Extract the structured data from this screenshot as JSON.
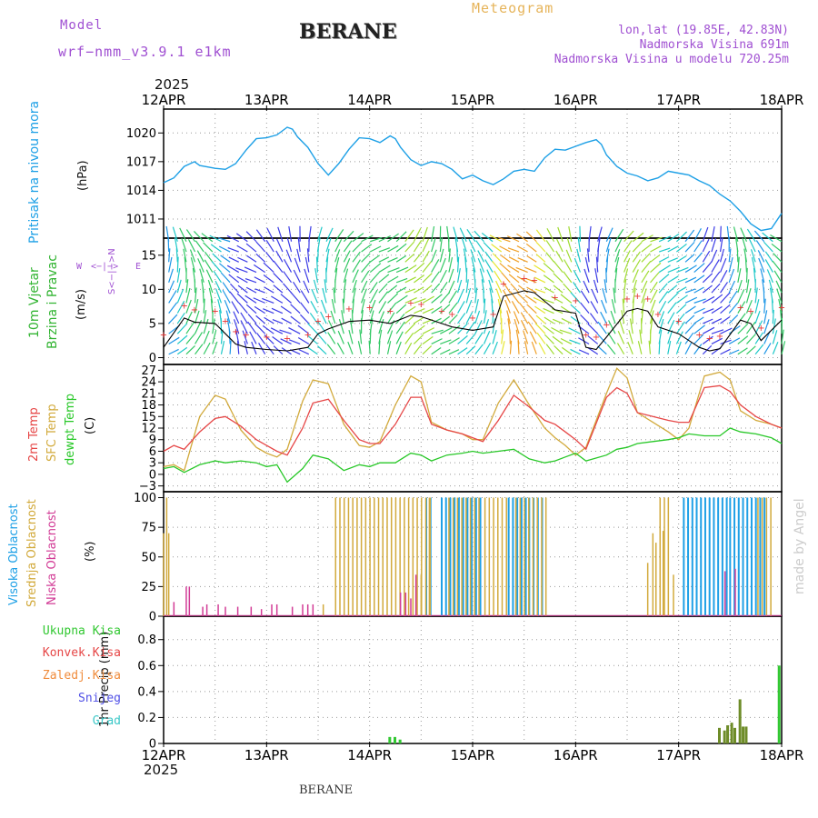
{
  "header": {
    "model_label": "Model",
    "model_name": "wrf−nmm_v3.9.1 e1km",
    "station": "BERANE",
    "product": "Meteogram",
    "lonlat": "lon,lat (19.85E, 42.83N)",
    "elevation": "Nadmorska Visina 691m",
    "model_elevation": "Nadmorska Visina u modelu 720.25m",
    "year_top": "2025",
    "year_bottom": "2025",
    "footer_station": "BERANE",
    "credit": "made by Angel"
  },
  "colors": {
    "pressure": "#1ea0e6",
    "temp2m": "#e64646",
    "sfc": "#d2aa3c",
    "dewpt": "#28c828",
    "wind_title": "#32b432",
    "wind_rose": "#a050d2",
    "high_cloud": "#1ea0e6",
    "mid_cloud": "#d2aa3c",
    "low_cloud": "#d23c96",
    "total_rain": "#32c832",
    "conv_rain": "#e64646",
    "frz_rain": "#f08c3c",
    "snow": "#5050e6",
    "graupel": "#3cc8c8",
    "precip_bar": "#6e8c28"
  },
  "chart_data": [
    {
      "type": "line",
      "panel": "pressure",
      "title_left": "Pritisak na nivou mora",
      "ylabel": "(hPa)",
      "ylim": [
        1009,
        1022.5
      ],
      "yticks": [
        1011,
        1014,
        1017,
        1020
      ],
      "x_days": [
        "12APR",
        "13APR",
        "14APR",
        "15APR",
        "16APR",
        "17APR",
        "18APR"
      ],
      "x": [
        0,
        0.1,
        0.2,
        0.3,
        0.35,
        0.5,
        0.6,
        0.7,
        0.8,
        0.9,
        1.0,
        1.1,
        1.2,
        1.25,
        1.3,
        1.4,
        1.5,
        1.6,
        1.7,
        1.8,
        1.9,
        2.0,
        2.1,
        2.2,
        2.25,
        2.3,
        2.4,
        2.5,
        2.6,
        2.7,
        2.8,
        2.9,
        3.0,
        3.1,
        3.2,
        3.3,
        3.4,
        3.5,
        3.6,
        3.7,
        3.8,
        3.9,
        4.0,
        4.1,
        4.2,
        4.25,
        4.3,
        4.4,
        4.5,
        4.6,
        4.7,
        4.8,
        4.9,
        5.0,
        5.1,
        5.2,
        5.3,
        5.4,
        5.5,
        5.6,
        5.7,
        5.8,
        5.9,
        6.0
      ],
      "values": [
        1014.8,
        1015.3,
        1016.5,
        1017.0,
        1016.6,
        1016.3,
        1016.2,
        1016.8,
        1018.2,
        1019.4,
        1019.5,
        1019.8,
        1020.6,
        1020.4,
        1019.6,
        1018.5,
        1016.8,
        1015.6,
        1016.8,
        1018.3,
        1019.5,
        1019.4,
        1019.0,
        1019.7,
        1019.4,
        1018.5,
        1017.2,
        1016.6,
        1017.0,
        1016.8,
        1016.2,
        1015.2,
        1015.6,
        1015.0,
        1014.6,
        1015.2,
        1016.0,
        1016.2,
        1016.0,
        1017.4,
        1018.3,
        1018.2,
        1018.6,
        1019.0,
        1019.3,
        1018.8,
        1017.7,
        1016.5,
        1015.8,
        1015.5,
        1015.0,
        1015.3,
        1016.0,
        1015.8,
        1015.6,
        1015.0,
        1014.5,
        1013.6,
        1012.9,
        1011.8,
        1010.5,
        1009.8,
        1010.0,
        1011.6
      ]
    },
    {
      "type": "line",
      "panel": "wind",
      "title_left": "10m Vjetar",
      "title_left2": "Brzina i Pravac",
      "ylabel": "(m/s)",
      "rose": {
        "n": "N",
        "s": "S",
        "w": "W",
        "e": "E",
        "mid": "<−|−>"
      },
      "ylim": [
        -1,
        17.5
      ],
      "yticks": [
        0,
        5,
        10,
        15
      ],
      "x": [
        0,
        0.2,
        0.3,
        0.5,
        0.6,
        0.7,
        0.8,
        1.0,
        1.2,
        1.4,
        1.5,
        1.6,
        1.8,
        2.0,
        2.2,
        2.4,
        2.5,
        2.7,
        2.8,
        3.0,
        3.2,
        3.3,
        3.5,
        3.6,
        3.8,
        4.0,
        4.1,
        4.2,
        4.3,
        4.5,
        4.6,
        4.7,
        4.8,
        5.0,
        5.2,
        5.3,
        5.4,
        5.6,
        5.7,
        5.8,
        6.0
      ],
      "values": [
        1.5,
        5.8,
        5.2,
        5.0,
        3.5,
        2.0,
        1.5,
        1.2,
        1.0,
        1.5,
        3.5,
        4.2,
        5.3,
        5.5,
        5.0,
        6.2,
        6.0,
        5.0,
        4.5,
        4.0,
        4.5,
        9.0,
        9.8,
        9.5,
        7.0,
        6.5,
        1.5,
        1.2,
        3.0,
        6.8,
        7.2,
        6.8,
        4.5,
        3.5,
        1.5,
        1.0,
        1.3,
        5.5,
        5.0,
        2.5,
        5.5
      ]
    },
    {
      "type": "line",
      "panel": "temperature",
      "title_left": "2m Temp",
      "title_left2": "SFC Temp",
      "title_left3": "dewpt Temp",
      "ylabel": "(C)",
      "ylim": [
        -4.5,
        28.5
      ],
      "yticks": [
        -3,
        0,
        3,
        6,
        9,
        12,
        15,
        18,
        21,
        24,
        27
      ],
      "x": [
        0,
        0.1,
        0.2,
        0.35,
        0.5,
        0.6,
        0.75,
        0.9,
        1.0,
        1.1,
        1.2,
        1.35,
        1.45,
        1.6,
        1.75,
        1.9,
        2.0,
        2.1,
        2.25,
        2.4,
        2.5,
        2.6,
        2.75,
        2.9,
        3.0,
        3.1,
        3.25,
        3.4,
        3.55,
        3.7,
        3.8,
        3.9,
        4.0,
        4.1,
        4.3,
        4.4,
        4.5,
        4.6,
        4.75,
        4.9,
        5.0,
        5.1,
        5.25,
        5.4,
        5.5,
        5.6,
        5.75,
        5.9,
        6.0
      ],
      "series": [
        {
          "name": "2m Temp",
          "values": [
            6.0,
            7.5,
            6.5,
            11.0,
            14.5,
            15.0,
            12.5,
            9.0,
            7.5,
            6.0,
            5.0,
            12.0,
            18.5,
            19.5,
            14.0,
            9.0,
            8.0,
            8.0,
            13.0,
            20.0,
            20.0,
            13.0,
            11.5,
            10.5,
            9.5,
            8.5,
            14.0,
            20.5,
            17.5,
            14.0,
            13.0,
            11.0,
            9.0,
            6.5,
            20.0,
            22.5,
            21.0,
            16.0,
            15.0,
            14.0,
            13.5,
            13.5,
            22.5,
            23.0,
            21.5,
            18.0,
            15.0,
            13.0,
            12.0
          ]
        },
        {
          "name": "SFC Temp",
          "values": [
            2.0,
            2.5,
            1.0,
            15.0,
            20.5,
            19.5,
            11.5,
            7.0,
            5.5,
            4.5,
            6.5,
            19.0,
            24.5,
            23.5,
            13.0,
            7.5,
            7.0,
            8.5,
            18.0,
            25.5,
            24.0,
            13.5,
            11.5,
            10.5,
            9.0,
            9.0,
            18.5,
            24.5,
            18.0,
            12.0,
            9.5,
            7.5,
            5.0,
            7.0,
            21.0,
            27.5,
            25.0,
            16.0,
            13.5,
            11.0,
            9.0,
            12.0,
            25.5,
            26.5,
            24.5,
            16.5,
            14.0,
            13.0,
            12.0
          ]
        },
        {
          "name": "dewpt Temp",
          "values": [
            1.5,
            2.0,
            0.5,
            2.5,
            3.5,
            3.0,
            3.5,
            3.0,
            2.0,
            2.5,
            -2.0,
            1.5,
            5.0,
            4.0,
            1.0,
            2.5,
            2.0,
            3.0,
            3.0,
            5.5,
            5.0,
            3.5,
            5.0,
            5.5,
            6.0,
            5.5,
            6.0,
            6.5,
            4.0,
            3.0,
            3.5,
            4.5,
            5.5,
            3.5,
            5.0,
            6.5,
            7.0,
            8.0,
            8.5,
            9.0,
            9.5,
            10.5,
            10.0,
            10.0,
            12.0,
            11.0,
            10.5,
            9.5,
            8.0
          ]
        }
      ]
    },
    {
      "type": "bar",
      "panel": "cloud",
      "title_left": "Visoka Oblacnost",
      "title_left2": "Srednja Oblacnost",
      "title_left3": "Niska Oblacnost",
      "ylabel": "(%)",
      "ylim": [
        0,
        105
      ],
      "yticks": [
        0,
        25,
        50,
        75,
        100
      ],
      "high_ranges": [
        [
          2.55,
          2.62
        ],
        [
          2.7,
          3.1
        ],
        [
          3.35,
          3.55
        ],
        [
          3.55,
          3.7
        ],
        [
          5.05,
          5.5
        ],
        [
          5.5,
          5.85
        ]
      ],
      "mid_ranges": [
        [
          1.65,
          2.6
        ],
        [
          2.75,
          3.1
        ],
        [
          3.1,
          3.35
        ],
        [
          3.4,
          3.75
        ],
        [
          4.8,
          4.9
        ],
        [
          5.75,
          5.9
        ]
      ],
      "low_bars": [
        [
          0.1,
          12
        ],
        [
          0.22,
          25
        ],
        [
          0.25,
          25
        ],
        [
          0.38,
          8
        ],
        [
          0.42,
          10
        ],
        [
          0.53,
          10
        ],
        [
          0.6,
          8
        ],
        [
          0.72,
          8
        ],
        [
          0.85,
          8
        ],
        [
          0.95,
          6
        ],
        [
          1.05,
          10
        ],
        [
          1.1,
          10
        ],
        [
          1.25,
          8
        ],
        [
          1.35,
          10
        ],
        [
          1.4,
          10
        ],
        [
          1.45,
          10
        ],
        [
          2.3,
          20
        ],
        [
          2.35,
          20
        ],
        [
          2.4,
          15
        ],
        [
          2.45,
          35
        ],
        [
          5.45,
          38
        ],
        [
          5.55,
          40
        ]
      ],
      "mid_extra": [
        [
          0.0,
          70
        ],
        [
          0.03,
          100
        ],
        [
          0.05,
          70
        ],
        [
          1.55,
          10
        ],
        [
          2.45,
          25
        ],
        [
          2.5,
          35
        ],
        [
          2.58,
          100
        ],
        [
          3.9,
          0
        ],
        [
          4.7,
          45
        ],
        [
          4.75,
          70
        ],
        [
          4.78,
          62
        ],
        [
          4.82,
          100
        ],
        [
          4.85,
          72
        ],
        [
          4.9,
          100
        ],
        [
          4.95,
          35
        ]
      ]
    },
    {
      "type": "bar",
      "panel": "precip",
      "title_left": "Ukupna Kisa",
      "title_left2": "Konvek.Kisa",
      "title_left3": "Zaledj.Kisa",
      "title_left4": "Snijeg",
      "title_left5": "Grad",
      "ylabel": "1hr Precip (mm)",
      "ylim": [
        0,
        0.98
      ],
      "yticks": [
        0,
        0.2,
        0.4,
        0.6,
        0.8
      ],
      "bars": [
        [
          2.2,
          0.05
        ],
        [
          2.25,
          0.05
        ],
        [
          2.3,
          0.03
        ],
        [
          5.4,
          0.12
        ],
        [
          5.45,
          0.1
        ],
        [
          5.48,
          0.14
        ],
        [
          5.52,
          0.16
        ],
        [
          5.55,
          0.12
        ],
        [
          5.6,
          0.34
        ],
        [
          5.63,
          0.13
        ],
        [
          5.66,
          0.13
        ],
        [
          5.98,
          0.6
        ]
      ]
    }
  ]
}
